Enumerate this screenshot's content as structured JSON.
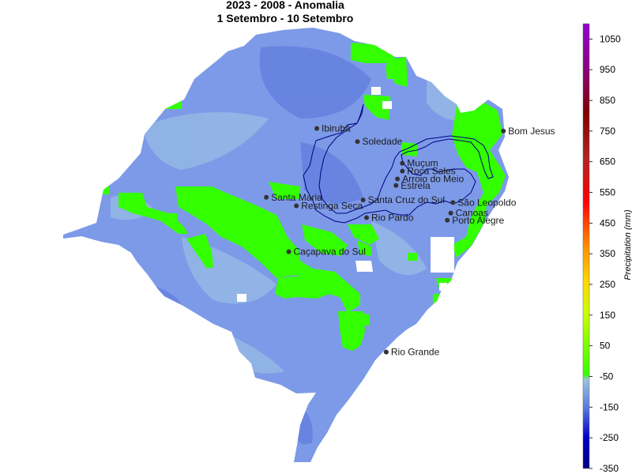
{
  "title": {
    "line1": "2023 - 2008 - Anomalia",
    "line2": "1 Setembro - 10 Setembro"
  },
  "colorbar": {
    "label": "Precipitation (mm)",
    "ticks": [
      "1050",
      "950",
      "850",
      "750",
      "650",
      "550",
      "450",
      "350",
      "250",
      "150",
      "50",
      "-50",
      "-150",
      "-250",
      "-350"
    ],
    "tick_values": [
      1050,
      950,
      850,
      750,
      650,
      550,
      450,
      350,
      250,
      150,
      50,
      -50,
      -150,
      -250,
      -350
    ],
    "range": [
      -350,
      1100
    ],
    "colors": [
      "#000080",
      "#0000cd",
      "#5f7fe0",
      "#99c2e0",
      "#33ff00",
      "#ccff00",
      "#ffd700",
      "#ff8c00",
      "#ff0000",
      "#b22222",
      "#800000",
      "#8b0080",
      "#9400d3"
    ]
  },
  "map": {
    "fill_colors": {
      "negative_anomaly": "#7d9ae8",
      "light_negative": "#93b6e6",
      "positive_anomaly": "#33ff00",
      "boundary": "#000080",
      "city_marker": "#333333"
    },
    "cities": [
      {
        "name": "Ibirubá",
        "lon": -53.09,
        "lat": -28.63
      },
      {
        "name": "Soledade",
        "lon": -52.51,
        "lat": -28.83
      },
      {
        "name": "Muçum",
        "lon": -51.87,
        "lat": -29.16
      },
      {
        "name": "Roca Sales",
        "lon": -51.87,
        "lat": -29.28
      },
      {
        "name": "Arroio do Meio",
        "lon": -51.94,
        "lat": -29.4
      },
      {
        "name": "Estrela",
        "lon": -51.96,
        "lat": -29.5
      },
      {
        "name": "Bom Jesus",
        "lon": -50.43,
        "lat": -28.67
      },
      {
        "name": "Santa Maria",
        "lon": -53.81,
        "lat": -29.68
      },
      {
        "name": "Restinga Seca",
        "lon": -53.38,
        "lat": -29.81
      },
      {
        "name": "Santa Cruz do Sul",
        "lon": -52.43,
        "lat": -29.72
      },
      {
        "name": "São Leopoldo",
        "lon": -51.15,
        "lat": -29.76
      },
      {
        "name": "Rio Pardo",
        "lon": -52.38,
        "lat": -29.99
      },
      {
        "name": "Canoas",
        "lon": -51.18,
        "lat": -29.92
      },
      {
        "name": "Porto Alegre",
        "lon": -51.23,
        "lat": -30.03
      },
      {
        "name": "Caçapava do Sul",
        "lon": -53.49,
        "lat": -30.51
      },
      {
        "name": "Rio Grande",
        "lon": -52.1,
        "lat": -32.04
      }
    ]
  }
}
